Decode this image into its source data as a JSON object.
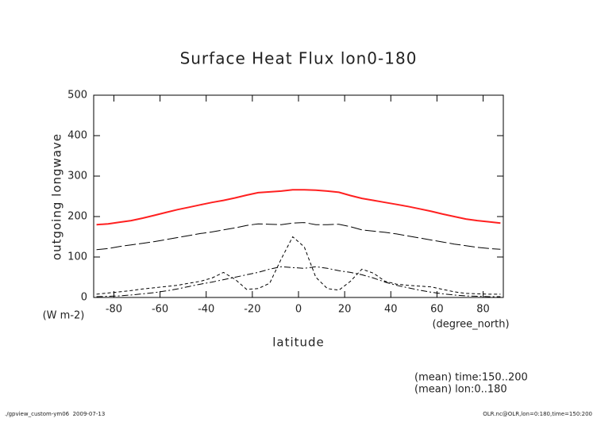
{
  "chart_data": {
    "type": "line",
    "title": "Surface Heat Flux lon0-180",
    "y_label": "outgoing longwave",
    "y_units": "(W m-2)",
    "x_label": "latitude",
    "x_units": "(degree_north)",
    "annotations": [
      "(mean) time:150..200",
      "(mean) lon:0..180"
    ],
    "footer_left": "./gpview_custom-ym06  2009-07-13",
    "footer_right": "OLR.nc@OLR,lon=0:180,time=150:200",
    "x": [
      -87.5,
      -82.5,
      -77.5,
      -72.5,
      -67.5,
      -62.5,
      -57.5,
      -52.5,
      -47.5,
      -42.5,
      -37.5,
      -32.5,
      -27.5,
      -22.5,
      -17.5,
      -12.5,
      -7.5,
      -2.5,
      2.5,
      7.5,
      12.5,
      17.5,
      22.5,
      27.5,
      32.5,
      37.5,
      42.5,
      47.5,
      52.5,
      57.5,
      62.5,
      67.5,
      72.5,
      77.5,
      82.5,
      87.5
    ],
    "series": [
      {
        "color": "#ff2020",
        "line_style": "solid",
        "values": [
          180,
          182,
          186,
          190,
          196,
          203,
          210,
          217,
          223,
          229,
          235,
          240,
          246,
          253,
          259,
          261,
          263,
          266,
          266,
          265,
          263,
          260,
          252,
          245,
          240,
          235,
          230,
          225,
          219,
          213,
          206,
          200,
          194,
          190,
          187,
          184
        ]
      },
      {
        "color": "#000000",
        "line_style": "long-dash",
        "values": [
          118,
          121,
          126,
          130,
          134,
          138,
          143,
          148,
          153,
          158,
          162,
          167,
          172,
          178,
          182,
          181,
          180,
          184,
          185,
          180,
          180,
          181,
          175,
          167,
          164,
          161,
          157,
          152,
          147,
          142,
          137,
          132,
          128,
          124,
          121,
          119
        ]
      },
      {
        "color": "#000000",
        "line_style": "dash-dot",
        "values": [
          2,
          3,
          4,
          6,
          9,
          12,
          16,
          21,
          27,
          33,
          38,
          44,
          50,
          56,
          62,
          70,
          76,
          74,
          72,
          76,
          72,
          66,
          62,
          56,
          48,
          38,
          30,
          24,
          18,
          13,
          9,
          6,
          4,
          3,
          2,
          2
        ]
      },
      {
        "color": "#000000",
        "line_style": "dash",
        "values": [
          8,
          11,
          14,
          17,
          21,
          24,
          27,
          30,
          35,
          40,
          48,
          62,
          45,
          20,
          22,
          35,
          95,
          150,
          125,
          50,
          22,
          18,
          40,
          70,
          60,
          40,
          33,
          30,
          28,
          26,
          20,
          14,
          10,
          9,
          8,
          8
        ]
      }
    ],
    "xlim": [
      -88.75,
      88.75
    ],
    "xticks": [
      -80,
      -60,
      -40,
      -20,
      0,
      20,
      40,
      60,
      80
    ],
    "ylim": [
      0,
      500
    ],
    "yticks": [
      0,
      100,
      200,
      300,
      400,
      500
    ]
  }
}
